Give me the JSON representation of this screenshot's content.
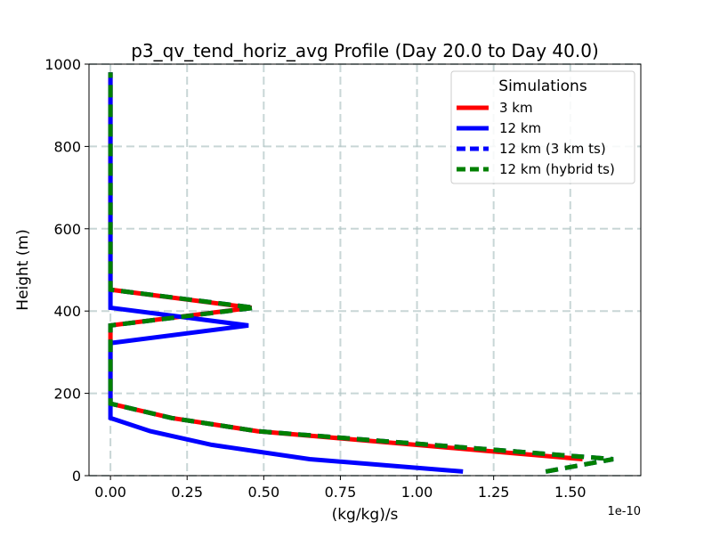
{
  "chart_data": {
    "type": "line",
    "title": "p3_qv_tend_horiz_avg Profile (Day 20.0 to Day 40.0)",
    "xlabel": "(kg/kg)/s",
    "ylabel": "Height (m)",
    "x_offset_text": "1e-10",
    "xlim": [
      -0.07,
      1.73
    ],
    "ylim": [
      0,
      1000
    ],
    "xticks": [
      0.0,
      0.25,
      0.5,
      0.75,
      1.0,
      1.25,
      1.5
    ],
    "xtick_labels": [
      "0.00",
      "0.25",
      "0.50",
      "0.75",
      "1.00",
      "1.25",
      "1.50"
    ],
    "yticks": [
      0,
      200,
      400,
      600,
      800,
      1000
    ],
    "ytick_labels": [
      "0",
      "200",
      "400",
      "600",
      "800",
      "1000"
    ],
    "grid": true,
    "legend": {
      "title": "Simulations",
      "placement": "top-right"
    },
    "series": [
      {
        "name": "3 km",
        "color": "#ff0000",
        "style": "solid",
        "points": [
          [
            1.54,
            40
          ],
          [
            0.48,
            108
          ],
          [
            0.2,
            140
          ],
          [
            0.0,
            175
          ],
          [
            0.0,
            365
          ],
          [
            0.46,
            408
          ],
          [
            0.0,
            452
          ],
          [
            0.0,
            980
          ]
        ]
      },
      {
        "name": "12 km",
        "color": "#0000ff",
        "style": "solid",
        "points": [
          [
            1.15,
            10
          ],
          [
            0.65,
            40
          ],
          [
            0.33,
            75
          ],
          [
            0.13,
            108
          ],
          [
            0.0,
            140
          ],
          [
            0.0,
            322
          ],
          [
            0.45,
            365
          ],
          [
            0.0,
            408
          ],
          [
            0.0,
            980
          ]
        ]
      },
      {
        "name": "12 km (3 km ts)",
        "color": "#0000ff",
        "style": "dashed",
        "points": [
          [
            1.42,
            10
          ],
          [
            1.64,
            40
          ],
          [
            0.48,
            108
          ],
          [
            0.2,
            140
          ],
          [
            0.0,
            175
          ],
          [
            0.0,
            365
          ],
          [
            0.47,
            408
          ],
          [
            0.0,
            452
          ],
          [
            0.0,
            980
          ]
        ]
      },
      {
        "name": "12 km (hybrid ts)",
        "color": "#008000",
        "style": "dashed",
        "points": [
          [
            1.42,
            10
          ],
          [
            1.64,
            40
          ],
          [
            0.48,
            108
          ],
          [
            0.2,
            140
          ],
          [
            0.0,
            175
          ],
          [
            0.0,
            365
          ],
          [
            0.47,
            408
          ],
          [
            0.0,
            452
          ],
          [
            0.0,
            980
          ]
        ]
      }
    ]
  }
}
